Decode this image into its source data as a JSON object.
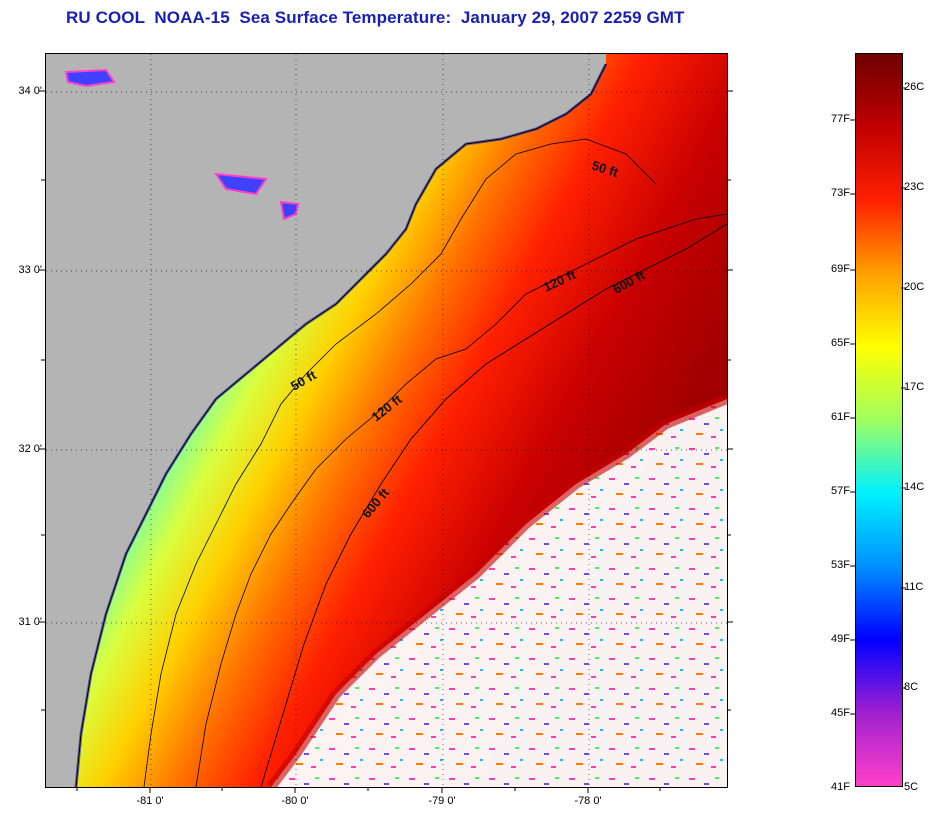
{
  "title": "RU COOL  NOAA-15  Sea Surface Temperature:  January 29, 2007 2259 GMT",
  "map": {
    "lat_labels": [
      "34 0'",
      "33 0'",
      "32 0'",
      "31 0'"
    ],
    "lon_labels": [
      "-81 0'",
      "-80 0'",
      "-79 0'",
      "-78 0'"
    ],
    "contour_labels": [
      "50 ft",
      "120 ft",
      "600 ft",
      "50 ft",
      "120 ft",
      "600 ft"
    ],
    "colors": {
      "land": "#b4b4b4",
      "cloud": "#ffffff",
      "coast": "#000000"
    }
  },
  "colorbar": {
    "fahrenheit_labels": [
      "77F",
      "73F",
      "69F",
      "65F",
      "61F",
      "57F",
      "53F",
      "49F",
      "45F",
      "41F"
    ],
    "celsius_labels": [
      "26C",
      "23C",
      "20C",
      "17C",
      "14C",
      "11C",
      "8C",
      "5C"
    ],
    "stops": [
      "#ff40c8",
      "#a020d0",
      "#0000ff",
      "#0090ff",
      "#00f0ff",
      "#a0ff60",
      "#ffff00",
      "#ffa000",
      "#ff2000",
      "#c00000",
      "#700000"
    ]
  }
}
